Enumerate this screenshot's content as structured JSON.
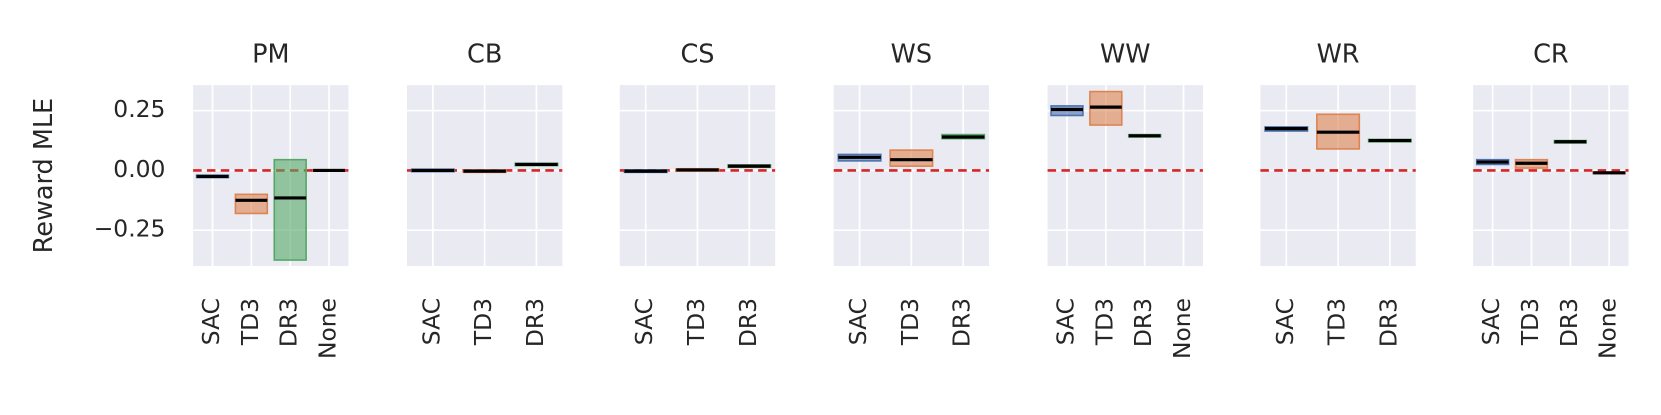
{
  "chart_data": [
    {
      "type": "box",
      "title": "PM",
      "ylabel": "Reward MLE",
      "categories": [
        "SAC",
        "TD3",
        "DR3",
        "None"
      ],
      "colors": [
        "#4c72b0",
        "#dd8452",
        "#55a868",
        "#c44e52"
      ],
      "median": [
        -0.025,
        -0.125,
        -0.115,
        0.0
      ],
      "low": [
        -0.03,
        -0.18,
        -0.375,
        -0.003
      ],
      "high": [
        -0.02,
        -0.1,
        0.045,
        0.003
      ],
      "ylim": [
        -0.4,
        0.357
      ],
      "yticks": [
        {
          "value": -0.25,
          "label": "−0.25"
        },
        {
          "value": 0,
          "label": "0.00"
        },
        {
          "value": 0.25,
          "label": "0.25"
        }
      ],
      "hline": 0,
      "hline_color": "#d62728",
      "grid": true
    },
    {
      "type": "box",
      "title": "CB",
      "categories": [
        "SAC",
        "TD3",
        "DR3"
      ],
      "colors": [
        "#4c72b0",
        "#dd8452",
        "#55a868"
      ],
      "median": [
        0.0,
        -0.003,
        0.025
      ],
      "low": [
        -0.005,
        -0.008,
        0.02
      ],
      "high": [
        0.005,
        0.002,
        0.03
      ],
      "ylim": [
        -0.4,
        0.357
      ],
      "yticks": [
        -0.25,
        0,
        0.25
      ],
      "hline": 0,
      "hline_color": "#d62728",
      "grid": true
    },
    {
      "type": "box",
      "title": "CS",
      "categories": [
        "SAC",
        "TD3",
        "DR3"
      ],
      "colors": [
        "#4c72b0",
        "#dd8452",
        "#55a868"
      ],
      "median": [
        -0.003,
        0.002,
        0.018
      ],
      "low": [
        -0.008,
        -0.003,
        0.013
      ],
      "high": [
        0.002,
        0.007,
        0.023
      ],
      "ylim": [
        -0.4,
        0.357
      ],
      "yticks": [
        -0.25,
        0,
        0.25
      ],
      "hline": 0,
      "hline_color": "#d62728",
      "grid": true
    },
    {
      "type": "box",
      "title": "WS",
      "categories": [
        "SAC",
        "TD3",
        "DR3"
      ],
      "colors": [
        "#4c72b0",
        "#dd8452",
        "#55a868"
      ],
      "median": [
        0.055,
        0.045,
        0.14
      ],
      "low": [
        0.04,
        0.018,
        0.133
      ],
      "high": [
        0.067,
        0.085,
        0.15
      ],
      "ylim": [
        -0.4,
        0.357
      ],
      "yticks": [
        -0.25,
        0,
        0.25
      ],
      "hline": 0,
      "hline_color": "#d62728",
      "grid": true
    },
    {
      "type": "box",
      "title": "WW",
      "categories": [
        "SAC",
        "TD3",
        "DR3",
        "None"
      ],
      "colors": [
        "#4c72b0",
        "#dd8452",
        "#55a868",
        "#c44e52"
      ],
      "median": [
        0.255,
        0.265,
        0.145,
        null
      ],
      "low": [
        0.23,
        0.19,
        0.14,
        null
      ],
      "high": [
        0.27,
        0.33,
        0.15,
        null
      ],
      "ylim": [
        -0.4,
        0.357
      ],
      "yticks": [
        -0.25,
        0,
        0.25
      ],
      "hline": 0,
      "hline_color": "#d62728",
      "grid": true
    },
    {
      "type": "box",
      "title": "WR",
      "categories": [
        "SAC",
        "TD3",
        "DR3"
      ],
      "colors": [
        "#4c72b0",
        "#dd8452",
        "#55a868"
      ],
      "median": [
        0.175,
        0.16,
        0.125
      ],
      "low": [
        0.165,
        0.09,
        0.12
      ],
      "high": [
        0.182,
        0.235,
        0.13
      ],
      "ylim": [
        -0.4,
        0.357
      ],
      "yticks": [
        -0.25,
        0,
        0.25
      ],
      "hline": 0,
      "hline_color": "#d62728",
      "grid": true
    },
    {
      "type": "box",
      "title": "CR",
      "categories": [
        "SAC",
        "TD3",
        "DR3",
        "None"
      ],
      "colors": [
        "#4c72b0",
        "#dd8452",
        "#55a868",
        "#c44e52"
      ],
      "median": [
        0.035,
        0.03,
        0.12,
        -0.01
      ],
      "low": [
        0.025,
        0.01,
        0.115,
        -0.013
      ],
      "high": [
        0.045,
        0.045,
        0.125,
        -0.007
      ],
      "ylim": [
        -0.4,
        0.357
      ],
      "yticks": [
        -0.25,
        0,
        0.25
      ],
      "hline": 0,
      "hline_color": "#d62728",
      "grid": true
    }
  ]
}
